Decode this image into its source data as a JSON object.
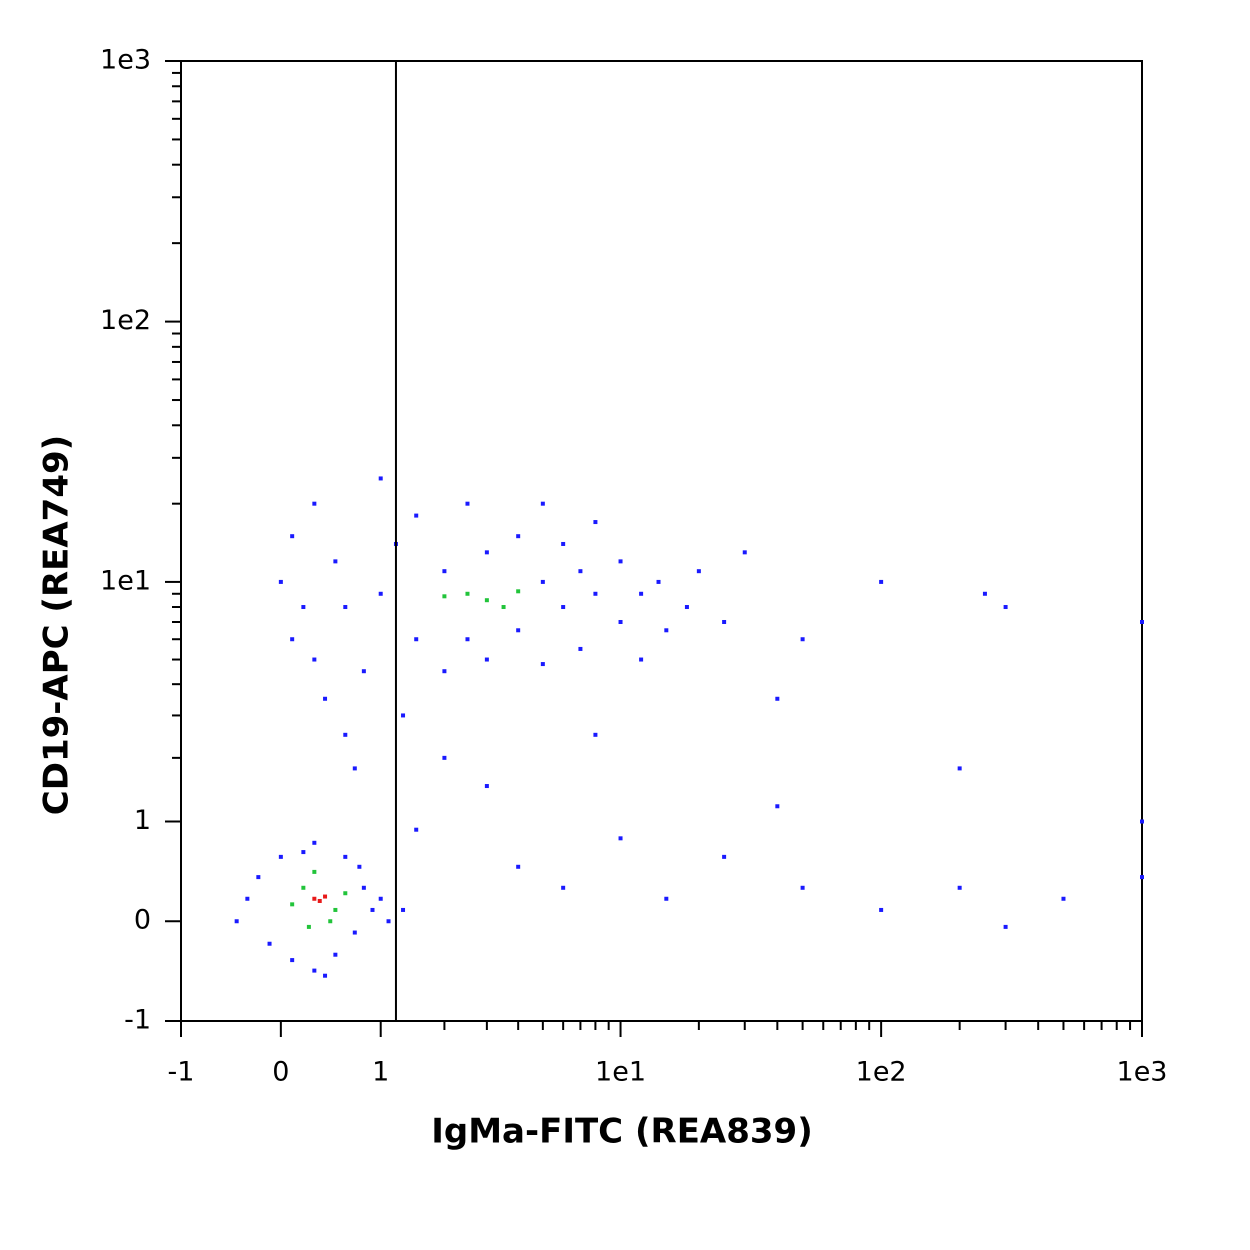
{
  "chart_data": {
    "type": "scatter",
    "x_label": "IgMa-FITC (REA839)",
    "y_label": "CD19-APC (REA749)",
    "scale": "asinh",
    "xlim": [
      -1,
      1000
    ],
    "ylim": [
      -1,
      1000
    ],
    "xticks": [
      -1,
      0,
      1,
      {
        "value": 10,
        "label": "1e1"
      },
      {
        "value": 100,
        "label": "1e2"
      },
      {
        "value": 1000,
        "label": "1e3"
      }
    ],
    "yticks": [
      -1,
      0,
      1,
      {
        "value": 10,
        "label": "1e1"
      },
      {
        "value": 100,
        "label": "1e2"
      },
      {
        "value": 1000,
        "label": "1e3"
      }
    ],
    "xminorticks": [
      2,
      3,
      4,
      5,
      6,
      7,
      8,
      9,
      20,
      30,
      40,
      50,
      60,
      70,
      80,
      90,
      200,
      300,
      400,
      500,
      600,
      700,
      800,
      900
    ],
    "yminorticks": [
      2,
      3,
      4,
      5,
      6,
      7,
      8,
      9,
      20,
      30,
      40,
      50,
      60,
      70,
      80,
      90,
      200,
      300,
      400,
      500,
      600,
      700,
      800,
      900
    ],
    "vlines": [
      1.2
    ],
    "series": [
      {
        "color": "#1a1aff",
        "x": [
          -0.3,
          -0.2,
          -0.1,
          0,
          0.1,
          0.3,
          0.5,
          0.7,
          0.8,
          0.6,
          0.3,
          0.9,
          1,
          1.1,
          1.3,
          -0.4,
          0.2,
          0.75,
          0.4,
          0,
          0.1,
          0.1,
          0.3,
          0.3,
          0.5,
          0.6,
          0.8,
          1,
          1,
          1.2,
          1.5,
          1.5,
          2,
          2,
          2.5,
          2.5,
          3,
          3,
          4,
          4,
          5,
          5,
          5,
          6,
          6,
          7,
          7,
          8,
          8,
          10,
          10,
          12,
          12,
          14,
          15,
          18,
          20,
          25,
          30,
          0.2,
          0.4,
          0.6,
          0.7,
          1.3,
          2,
          3,
          1.5,
          4,
          6,
          10,
          15,
          40,
          50,
          100,
          200,
          300,
          500,
          100,
          250,
          300,
          1000,
          1000,
          1000,
          25,
          8,
          50,
          40,
          200
        ],
        "values": [
          0.2,
          0.4,
          -0.2,
          0.6,
          -0.35,
          -0.45,
          -0.3,
          -0.1,
          0.3,
          0.6,
          0.75,
          0.1,
          0.2,
          0,
          0.1,
          0,
          0.65,
          0.5,
          -0.5,
          10,
          6,
          15,
          20,
          5,
          12,
          8,
          4.5,
          25,
          9,
          14,
          6,
          18,
          4.5,
          11,
          20,
          6,
          13,
          5,
          15,
          6.5,
          10,
          4.8,
          20,
          8,
          14,
          5.5,
          11,
          9,
          17,
          7,
          12,
          5,
          9,
          10,
          6.5,
          8,
          11,
          7,
          13,
          8,
          3.5,
          2.5,
          1.8,
          3,
          2,
          1.5,
          0.9,
          0.5,
          0.3,
          0.8,
          0.2,
          1.2,
          0.3,
          0.1,
          0.3,
          -0.05,
          0.2,
          10,
          9,
          8,
          7,
          1,
          0.4,
          0.6,
          2.5,
          6,
          3.5,
          1.8
        ]
      },
      {
        "color": "#22c43a",
        "x": [
          0.2,
          0.5,
          0.1,
          0.3,
          0.45,
          0.6,
          0.25,
          2.5,
          3,
          3.5,
          2,
          4
        ],
        "values": [
          0.3,
          0.1,
          0.15,
          0.45,
          0,
          0.25,
          -0.05,
          9,
          8.5,
          8,
          8.8,
          9.2
        ]
      },
      {
        "color": "#e81a1a",
        "x": [
          0.3,
          0.35,
          0.4
        ],
        "values": [
          0.2,
          0.18,
          0.22
        ]
      }
    ]
  }
}
